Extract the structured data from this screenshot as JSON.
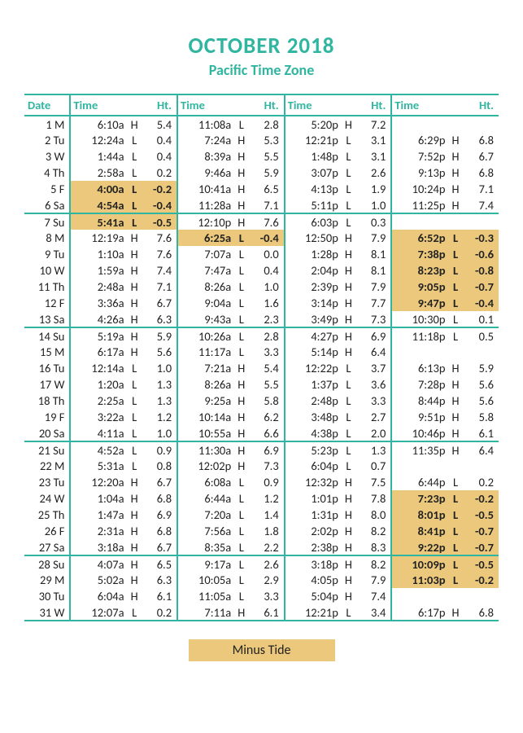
{
  "title": "OCTOBER 2018",
  "subtitle": "Pacific Time Zone",
  "legend": "Minus Tide",
  "headers": {
    "date": "Date",
    "time": "Time",
    "ht": "Ht."
  },
  "colors": {
    "accent": "#2fb5a0",
    "highlight": "#ebc87c"
  },
  "rows": [
    {
      "d": "1 M",
      "we": false,
      "t": [
        [
          "6:10a",
          "H",
          "5.4",
          false
        ],
        [
          "11:08a",
          "L",
          "2.8",
          false
        ],
        [
          "5:20p",
          "H",
          "7.2",
          false
        ],
        [
          "",
          "",
          "",
          false
        ]
      ]
    },
    {
      "d": "2 Tu",
      "we": false,
      "t": [
        [
          "12:24a",
          "L",
          "0.4",
          false
        ],
        [
          "7:24a",
          "H",
          "5.3",
          false
        ],
        [
          "12:21p",
          "L",
          "3.1",
          false
        ],
        [
          "6:29p",
          "H",
          "6.8",
          false
        ]
      ]
    },
    {
      "d": "3 W",
      "we": false,
      "t": [
        [
          "1:44a",
          "L",
          "0.4",
          false
        ],
        [
          "8:39a",
          "H",
          "5.5",
          false
        ],
        [
          "1:48p",
          "L",
          "3.1",
          false
        ],
        [
          "7:52p",
          "H",
          "6.7",
          false
        ]
      ]
    },
    {
      "d": "4 Th",
      "we": false,
      "t": [
        [
          "2:58a",
          "L",
          "0.2",
          false
        ],
        [
          "9:46a",
          "H",
          "5.9",
          false
        ],
        [
          "3:07p",
          "L",
          "2.6",
          false
        ],
        [
          "9:13p",
          "H",
          "6.8",
          false
        ]
      ]
    },
    {
      "d": "5 F",
      "we": false,
      "t": [
        [
          "4:00a",
          "L",
          "-0.2",
          true
        ],
        [
          "10:41a",
          "H",
          "6.5",
          false
        ],
        [
          "4:13p",
          "L",
          "1.9",
          false
        ],
        [
          "10:24p",
          "H",
          "7.1",
          false
        ]
      ]
    },
    {
      "d": "6 Sa",
      "we": true,
      "t": [
        [
          "4:54a",
          "L",
          "-0.4",
          true
        ],
        [
          "11:28a",
          "H",
          "7.1",
          false
        ],
        [
          "5:11p",
          "L",
          "1.0",
          false
        ],
        [
          "11:25p",
          "H",
          "7.4",
          false
        ]
      ]
    },
    {
      "d": "7 Su",
      "we": false,
      "t": [
        [
          "5:41a",
          "L",
          "-0.5",
          true
        ],
        [
          "12:10p",
          "H",
          "7.6",
          false
        ],
        [
          "6:03p",
          "L",
          "0.3",
          false
        ],
        [
          "",
          "",
          "",
          false
        ]
      ]
    },
    {
      "d": "8 M",
      "we": false,
      "t": [
        [
          "12:19a",
          "H",
          "7.6",
          false
        ],
        [
          "6:25a",
          "L",
          "-0.4",
          true
        ],
        [
          "12:50p",
          "H",
          "7.9",
          false
        ],
        [
          "6:52p",
          "L",
          "-0.3",
          true
        ]
      ]
    },
    {
      "d": "9 Tu",
      "we": false,
      "t": [
        [
          "1:10a",
          "H",
          "7.6",
          false
        ],
        [
          "7:07a",
          "L",
          "0.0",
          false
        ],
        [
          "1:28p",
          "H",
          "8.1",
          false
        ],
        [
          "7:38p",
          "L",
          "-0.6",
          true
        ]
      ]
    },
    {
      "d": "10 W",
      "we": false,
      "t": [
        [
          "1:59a",
          "H",
          "7.4",
          false
        ],
        [
          "7:47a",
          "L",
          "0.4",
          false
        ],
        [
          "2:04p",
          "H",
          "8.1",
          false
        ],
        [
          "8:23p",
          "L",
          "-0.8",
          true
        ]
      ]
    },
    {
      "d": "11 Th",
      "we": false,
      "t": [
        [
          "2:48a",
          "H",
          "7.1",
          false
        ],
        [
          "8:26a",
          "L",
          "1.0",
          false
        ],
        [
          "2:39p",
          "H",
          "7.9",
          false
        ],
        [
          "9:05p",
          "L",
          "-0.7",
          true
        ]
      ]
    },
    {
      "d": "12 F",
      "we": false,
      "t": [
        [
          "3:36a",
          "H",
          "6.7",
          false
        ],
        [
          "9:04a",
          "L",
          "1.6",
          false
        ],
        [
          "3:14p",
          "H",
          "7.7",
          false
        ],
        [
          "9:47p",
          "L",
          "-0.4",
          true
        ]
      ]
    },
    {
      "d": "13 Sa",
      "we": true,
      "t": [
        [
          "4:26a",
          "H",
          "6.3",
          false
        ],
        [
          "9:43a",
          "L",
          "2.3",
          false
        ],
        [
          "3:49p",
          "H",
          "7.3",
          false
        ],
        [
          "10:30p",
          "L",
          "0.1",
          false
        ]
      ]
    },
    {
      "d": "14 Su",
      "we": false,
      "t": [
        [
          "5:19a",
          "H",
          "5.9",
          false
        ],
        [
          "10:26a",
          "L",
          "2.8",
          false
        ],
        [
          "4:27p",
          "H",
          "6.9",
          false
        ],
        [
          "11:18p",
          "L",
          "0.5",
          false
        ]
      ]
    },
    {
      "d": "15 M",
      "we": false,
      "t": [
        [
          "6:17a",
          "H",
          "5.6",
          false
        ],
        [
          "11:17a",
          "L",
          "3.3",
          false
        ],
        [
          "5:14p",
          "H",
          "6.4",
          false
        ],
        [
          "",
          "",
          "",
          false
        ]
      ]
    },
    {
      "d": "16 Tu",
      "we": false,
      "t": [
        [
          "12:14a",
          "L",
          "1.0",
          false
        ],
        [
          "7:21a",
          "H",
          "5.4",
          false
        ],
        [
          "12:22p",
          "L",
          "3.7",
          false
        ],
        [
          "6:13p",
          "H",
          "5.9",
          false
        ]
      ]
    },
    {
      "d": "17 W",
      "we": false,
      "t": [
        [
          "1:20a",
          "L",
          "1.3",
          false
        ],
        [
          "8:26a",
          "H",
          "5.5",
          false
        ],
        [
          "1:37p",
          "L",
          "3.6",
          false
        ],
        [
          "7:28p",
          "H",
          "5.6",
          false
        ]
      ]
    },
    {
      "d": "18 Th",
      "we": false,
      "t": [
        [
          "2:25a",
          "L",
          "1.3",
          false
        ],
        [
          "9:25a",
          "H",
          "5.8",
          false
        ],
        [
          "2:48p",
          "L",
          "3.3",
          false
        ],
        [
          "8:44p",
          "H",
          "5.6",
          false
        ]
      ]
    },
    {
      "d": "19 F",
      "we": false,
      "t": [
        [
          "3:22a",
          "L",
          "1.2",
          false
        ],
        [
          "10:14a",
          "H",
          "6.2",
          false
        ],
        [
          "3:48p",
          "L",
          "2.7",
          false
        ],
        [
          "9:51p",
          "H",
          "5.8",
          false
        ]
      ]
    },
    {
      "d": "20 Sa",
      "we": true,
      "t": [
        [
          "4:11a",
          "L",
          "1.0",
          false
        ],
        [
          "10:55a",
          "H",
          "6.6",
          false
        ],
        [
          "4:38p",
          "L",
          "2.0",
          false
        ],
        [
          "10:46p",
          "H",
          "6.1",
          false
        ]
      ]
    },
    {
      "d": "21 Su",
      "we": false,
      "t": [
        [
          "4:52a",
          "L",
          "0.9",
          false
        ],
        [
          "11:30a",
          "H",
          "6.9",
          false
        ],
        [
          "5:23p",
          "L",
          "1.3",
          false
        ],
        [
          "11:35p",
          "H",
          "6.4",
          false
        ]
      ]
    },
    {
      "d": "22 M",
      "we": false,
      "t": [
        [
          "5:31a",
          "L",
          "0.8",
          false
        ],
        [
          "12:02p",
          "H",
          "7.3",
          false
        ],
        [
          "6:04p",
          "L",
          "0.7",
          false
        ],
        [
          "",
          "",
          "",
          false
        ]
      ]
    },
    {
      "d": "23 Tu",
      "we": false,
      "t": [
        [
          "12:20a",
          "H",
          "6.7",
          false
        ],
        [
          "6:08a",
          "L",
          "0.9",
          false
        ],
        [
          "12:32p",
          "H",
          "7.5",
          false
        ],
        [
          "6:44p",
          "L",
          "0.2",
          false
        ]
      ]
    },
    {
      "d": "24 W",
      "we": false,
      "t": [
        [
          "1:04a",
          "H",
          "6.8",
          false
        ],
        [
          "6:44a",
          "L",
          "1.2",
          false
        ],
        [
          "1:01p",
          "H",
          "7.8",
          false
        ],
        [
          "7:23p",
          "L",
          "-0.2",
          true
        ]
      ]
    },
    {
      "d": "25 Th",
      "we": false,
      "t": [
        [
          "1:47a",
          "H",
          "6.9",
          false
        ],
        [
          "7:20a",
          "L",
          "1.4",
          false
        ],
        [
          "1:31p",
          "H",
          "8.0",
          false
        ],
        [
          "8:01p",
          "L",
          "-0.5",
          true
        ]
      ]
    },
    {
      "d": "26 F",
      "we": false,
      "t": [
        [
          "2:31a",
          "H",
          "6.8",
          false
        ],
        [
          "7:56a",
          "L",
          "1.8",
          false
        ],
        [
          "2:02p",
          "H",
          "8.2",
          false
        ],
        [
          "8:41p",
          "L",
          "-0.7",
          true
        ]
      ]
    },
    {
      "d": "27 Sa",
      "we": true,
      "t": [
        [
          "3:18a",
          "H",
          "6.7",
          false
        ],
        [
          "8:35a",
          "L",
          "2.2",
          false
        ],
        [
          "2:38p",
          "H",
          "8.3",
          false
        ],
        [
          "9:22p",
          "L",
          "-0.7",
          true
        ]
      ]
    },
    {
      "d": "28 Su",
      "we": false,
      "t": [
        [
          "4:07a",
          "H",
          "6.5",
          false
        ],
        [
          "9:17a",
          "L",
          "2.6",
          false
        ],
        [
          "3:18p",
          "H",
          "8.2",
          false
        ],
        [
          "10:09p",
          "L",
          "-0.5",
          true
        ]
      ]
    },
    {
      "d": "29 M",
      "we": false,
      "t": [
        [
          "5:02a",
          "H",
          "6.3",
          false
        ],
        [
          "10:05a",
          "L",
          "2.9",
          false
        ],
        [
          "4:05p",
          "H",
          "7.9",
          false
        ],
        [
          "11:03p",
          "L",
          "-0.2",
          true
        ]
      ]
    },
    {
      "d": "30 Tu",
      "we": false,
      "t": [
        [
          "6:04a",
          "H",
          "6.1",
          false
        ],
        [
          "11:05a",
          "L",
          "3.3",
          false
        ],
        [
          "5:04p",
          "H",
          "7.4",
          false
        ],
        [
          "",
          "",
          "",
          false
        ]
      ]
    },
    {
      "d": "31 W",
      "we": false,
      "t": [
        [
          "12:07a",
          "L",
          "0.2",
          false
        ],
        [
          "7:11a",
          "H",
          "6.1",
          false
        ],
        [
          "12:21p",
          "L",
          "3.4",
          false
        ],
        [
          "6:17p",
          "H",
          "6.8",
          false
        ]
      ]
    }
  ]
}
